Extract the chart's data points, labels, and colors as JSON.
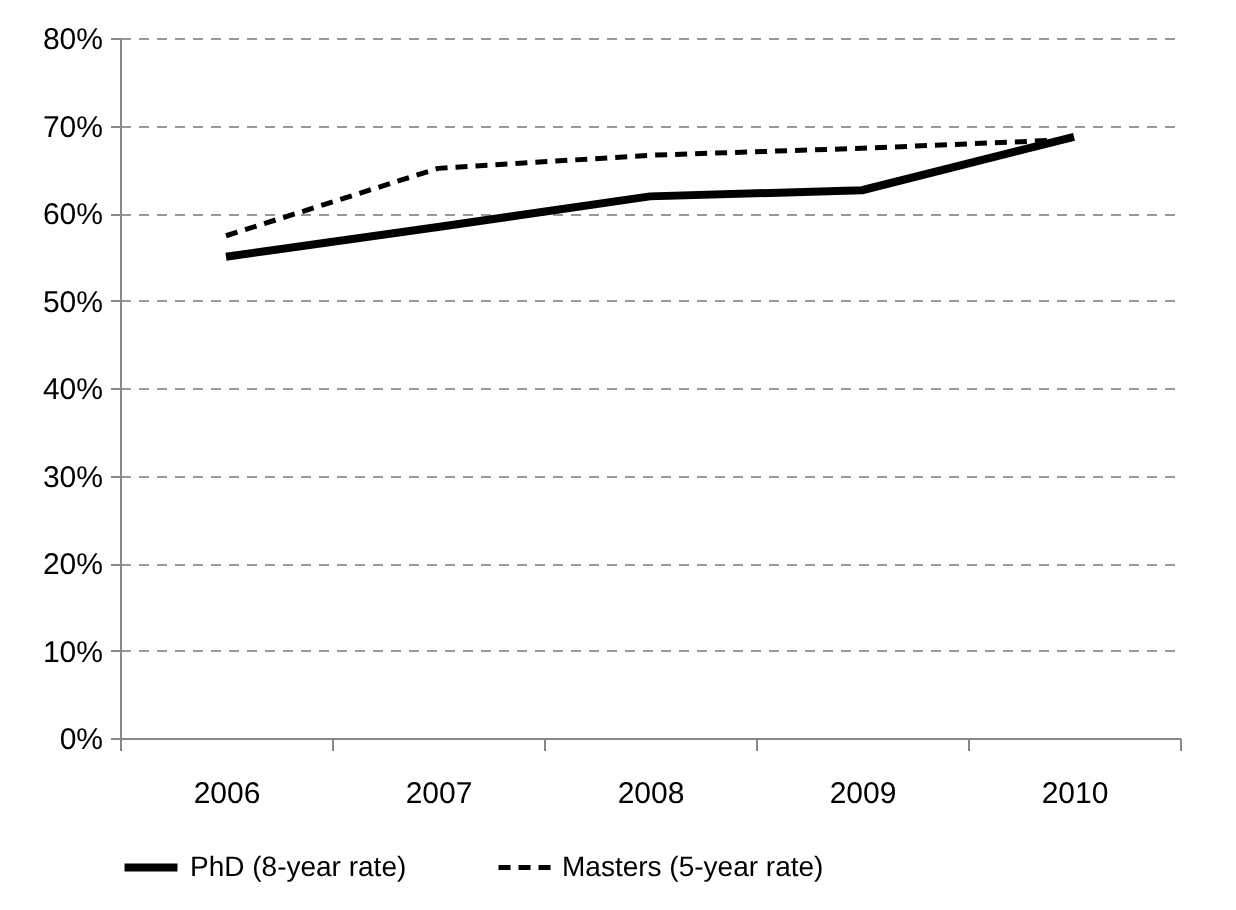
{
  "chart_data": {
    "type": "line",
    "categories": [
      "2006",
      "2007",
      "2008",
      "2009",
      "2010"
    ],
    "series": [
      {
        "name": "PhD (8-year rate)",
        "color": "#000000",
        "line_style": "solid",
        "values": [
          55,
          58.4,
          61.9,
          62.6,
          68.7
        ]
      },
      {
        "name": "Masters (5-year rate)",
        "color": "#000000",
        "line_style": "dashed",
        "values": [
          57.4,
          65.1,
          66.6,
          67.4,
          68.4
        ]
      }
    ],
    "ylim": [
      0,
      80
    ],
    "yticks": [
      {
        "value": 0,
        "label": "0%"
      },
      {
        "value": 10,
        "label": "10%"
      },
      {
        "value": 20,
        "label": "20%"
      },
      {
        "value": 30,
        "label": "30%"
      },
      {
        "value": 40,
        "label": "40%"
      },
      {
        "value": 50,
        "label": "50%"
      },
      {
        "value": 60,
        "label": "60%"
      },
      {
        "value": 70,
        "label": "70%"
      },
      {
        "value": 80,
        "label": "80%"
      }
    ],
    "grid": "y",
    "legend": "bottom",
    "marker": "none"
  }
}
